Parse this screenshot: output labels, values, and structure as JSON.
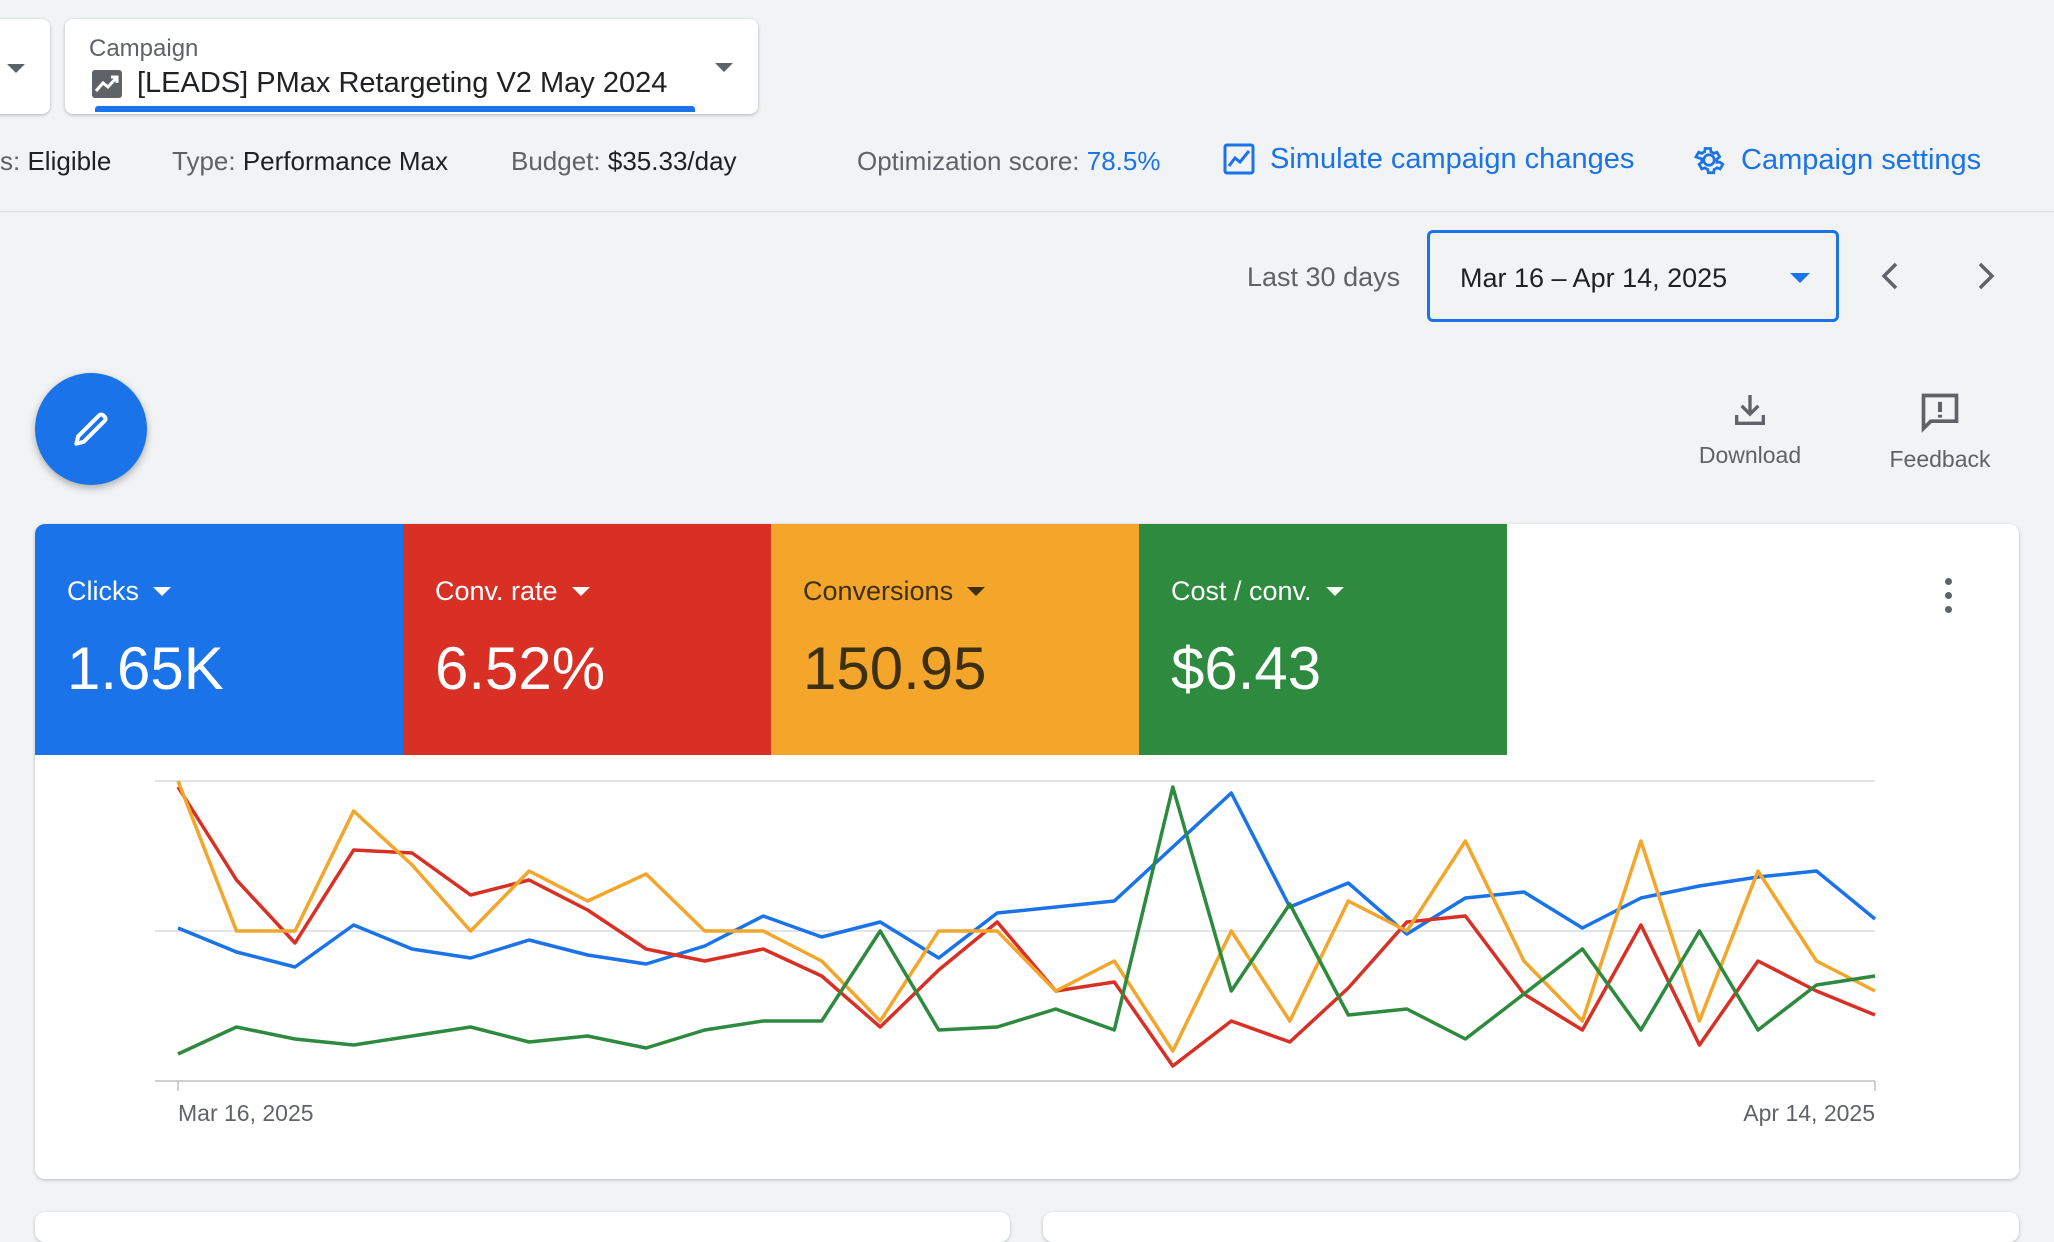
{
  "header": {
    "status_prefix": "s:",
    "status_value": "Eligible",
    "type_label": "Type:",
    "type_value": "Performance Max",
    "budget_label": "Budget:",
    "budget_value": "$35.33/day",
    "optimization_label": "Optimization score:",
    "optimization_value": "78.5%",
    "simulate_label": "Simulate campaign changes",
    "settings_label": "Campaign settings"
  },
  "campaign_selector": {
    "label": "Campaign",
    "name": "[LEADS] PMax Retargeting V2 May 2024"
  },
  "date_range": {
    "preset": "Last 30 days",
    "range": "Mar 16 – Apr 14, 2025"
  },
  "toolbar": {
    "download_label": "Download",
    "feedback_label": "Feedback"
  },
  "metrics": [
    {
      "label": "Clicks",
      "value": "1.65K",
      "color": "#1a73e8",
      "text_color": "#ffffff"
    },
    {
      "label": "Conv. rate",
      "value": "6.52%",
      "color": "#d93025",
      "text_color": "#ffffff"
    },
    {
      "label": "Conversions",
      "value": "150.95",
      "color": "#f4a62a",
      "text_color": "#3c2f12"
    },
    {
      "label": "Cost / conv.",
      "value": "$6.43",
      "color": "#2d8a3e",
      "text_color": "#ffffff"
    }
  ],
  "chart_data": {
    "type": "line",
    "x_start_label": "Mar 16, 2025",
    "x_end_label": "Apr 14, 2025",
    "grid": true,
    "y_scale": "relative (0 = bottom axis, 1 = top gridline)",
    "series": [
      {
        "name": "Clicks",
        "color": "#1a73e8",
        "values": [
          0.51,
          0.43,
          0.38,
          0.52,
          0.44,
          0.41,
          0.47,
          0.42,
          0.39,
          0.45,
          0.55,
          0.48,
          0.53,
          0.41,
          0.56,
          0.58,
          0.6,
          0.78,
          0.96,
          0.58,
          0.66,
          0.49,
          0.61,
          0.63,
          0.51,
          0.61,
          0.65,
          0.68,
          0.7,
          0.54
        ]
      },
      {
        "name": "Conv. rate",
        "color": "#d93025",
        "values": [
          0.98,
          0.67,
          0.46,
          0.77,
          0.76,
          0.62,
          0.67,
          0.57,
          0.44,
          0.4,
          0.44,
          0.35,
          0.18,
          0.37,
          0.53,
          0.3,
          0.33,
          0.05,
          0.2,
          0.13,
          0.31,
          0.53,
          0.55,
          0.29,
          0.17,
          0.52,
          0.12,
          0.4,
          0.3,
          0.22
        ]
      },
      {
        "name": "Conversions",
        "color": "#f4a62a",
        "values": [
          1.0,
          0.5,
          0.5,
          0.9,
          0.72,
          0.5,
          0.7,
          0.6,
          0.69,
          0.5,
          0.5,
          0.4,
          0.2,
          0.5,
          0.5,
          0.3,
          0.4,
          0.1,
          0.5,
          0.2,
          0.6,
          0.5,
          0.8,
          0.4,
          0.2,
          0.8,
          0.2,
          0.7,
          0.4,
          0.3
        ]
      },
      {
        "name": "Cost / conv.",
        "color": "#2d8a3e",
        "values": [
          0.09,
          0.18,
          0.14,
          0.12,
          0.15,
          0.18,
          0.13,
          0.15,
          0.11,
          0.17,
          0.2,
          0.2,
          0.5,
          0.17,
          0.18,
          0.24,
          0.17,
          0.98,
          0.3,
          0.59,
          0.22,
          0.24,
          0.14,
          0.29,
          0.44,
          0.17,
          0.5,
          0.17,
          0.32,
          0.35
        ]
      }
    ]
  }
}
